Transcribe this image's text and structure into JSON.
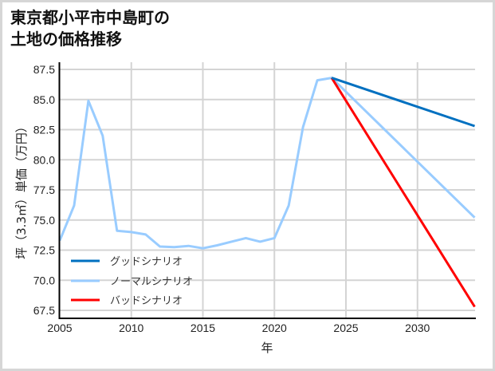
{
  "title_lines": [
    "東京都小平市中島町の",
    "土地の価格推移"
  ],
  "chart_data": {
    "type": "line",
    "title": "東京都小平市中島町の土地の価格推移",
    "xlabel": "年",
    "ylabel": "坪（3.3㎡）単価（万円）",
    "xlim": [
      2005,
      2034
    ],
    "ylim": [
      66.8,
      88.1
    ],
    "x_ticks": [
      2005,
      2010,
      2015,
      2020,
      2025,
      2030
    ],
    "y_ticks": [
      "67.5",
      "70.0",
      "72.5",
      "75.0",
      "77.5",
      "80.0",
      "82.5",
      "85.0",
      "87.5"
    ],
    "grid": true,
    "legend_position": "lower left",
    "series": [
      {
        "name": "グッドシナリオ",
        "color": "#0070c0",
        "x": [
          2024,
          2034
        ],
        "values": [
          86.8,
          82.8
        ]
      },
      {
        "name": "ノーマルシナリオ",
        "color": "#99ccff",
        "x": [
          2005,
          2006,
          2007,
          2008,
          2009,
          2010,
          2011,
          2012,
          2013,
          2014,
          2015,
          2016,
          2017,
          2018,
          2019,
          2020,
          2021,
          2022,
          2023,
          2024,
          2034
        ],
        "values": [
          73.3,
          76.2,
          84.9,
          82.0,
          74.1,
          74.0,
          73.8,
          72.8,
          72.75,
          72.85,
          72.65,
          72.9,
          73.2,
          73.5,
          73.2,
          73.5,
          76.2,
          82.7,
          86.6,
          86.8,
          75.2
        ]
      },
      {
        "name": "バッドシナリオ",
        "color": "#ff0000",
        "x": [
          2024,
          2034
        ],
        "values": [
          86.8,
          67.8
        ]
      }
    ]
  }
}
